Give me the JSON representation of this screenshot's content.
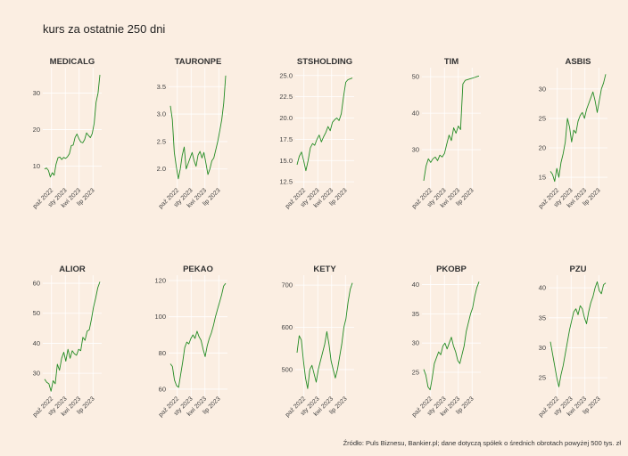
{
  "title": "kurs za ostatnie 250 dni",
  "caption": "Źródło: Puls Biznesu, Bankier.pl; dane dotyczą spółek o średnich obrotach powyżej 500 tys. zł",
  "colors": {
    "background": "#fbeee2",
    "line": "#238b23",
    "grid": "#ffffff"
  },
  "chart_data": [
    {
      "type": "line",
      "title": "MEDICALG",
      "x_ticks": [
        "paź 2022",
        "sty 2023",
        "kwi 2023",
        "lip 2023"
      ],
      "y_ticks": [
        10,
        20,
        30
      ],
      "ylim": [
        5,
        36
      ],
      "series": [
        {
          "values": [
            9.2,
            9.5,
            8.8,
            7.0,
            8.2,
            7.5,
            10.5,
            12.3,
            12.5,
            11.8,
            12.4,
            12.1,
            12.6,
            13.4,
            15.6,
            15.8,
            17.9,
            18.8,
            17.5,
            16.6,
            16.4,
            17.3,
            19.1,
            18.4,
            17.8,
            18.9,
            21.8,
            27.5,
            30.0,
            35.0
          ]
        }
      ]
    },
    {
      "type": "line",
      "title": "TAURONPE",
      "x_ticks": [
        "paź 2022",
        "sty 2023",
        "kwi 2023",
        "lip 2023"
      ],
      "y_ticks": [
        2.0,
        2.5,
        3.0,
        3.5
      ],
      "ylim": [
        1.72,
        3.78
      ],
      "series": [
        {
          "values": [
            3.15,
            2.9,
            2.3,
            2.05,
            1.82,
            2.0,
            2.25,
            2.4,
            2.0,
            2.1,
            2.2,
            2.3,
            2.15,
            2.05,
            2.25,
            2.32,
            2.2,
            2.3,
            2.1,
            1.9,
            2.0,
            2.15,
            2.2,
            2.35,
            2.5,
            2.7,
            2.9,
            3.2,
            3.7
          ]
        }
      ]
    },
    {
      "type": "line",
      "title": "STSHOLDING",
      "x_ticks": [
        "paź 2022",
        "sty 2023",
        "kwi 2023",
        "lip 2023"
      ],
      "y_ticks": [
        12.5,
        15.0,
        17.5,
        20.0,
        22.5,
        25.0
      ],
      "ylim": [
        12.2,
        25.5
      ],
      "series": [
        {
          "values": [
            14.5,
            15.5,
            16.0,
            15.0,
            13.8,
            15.0,
            16.5,
            17.0,
            16.8,
            17.5,
            18.0,
            17.2,
            17.8,
            18.3,
            19.0,
            18.5,
            19.5,
            19.8,
            20.0,
            19.7,
            20.5,
            22.5,
            24.2,
            24.5,
            24.6,
            24.7
          ]
        }
      ]
    },
    {
      "type": "line",
      "title": "TIM",
      "x_ticks": [
        "paź 2022",
        "sty 2023",
        "kwi 2023",
        "lip 2023"
      ],
      "y_ticks": [
        30,
        40,
        50
      ],
      "ylim": [
        20.5,
        51.5
      ],
      "series": [
        {
          "values": [
            21.5,
            25.5,
            27.5,
            26.5,
            27.5,
            28.0,
            27.0,
            28.5,
            28.0,
            29.0,
            31.5,
            34.0,
            32.5,
            36.0,
            34.5,
            36.5,
            35.5,
            48.0,
            49.0,
            49.2,
            49.4,
            49.6,
            49.8,
            50.0,
            50.2
          ]
        }
      ]
    },
    {
      "type": "line",
      "title": "ASBIS",
      "x_ticks": [
        "paź 2022",
        "sty 2023",
        "kwi 2023",
        "lip 2023"
      ],
      "y_ticks": [
        15,
        20,
        25,
        30
      ],
      "ylim": [
        13.8,
        33.0
      ],
      "series": [
        {
          "values": [
            16.0,
            15.5,
            14.3,
            16.5,
            15.0,
            17.5,
            19.0,
            21.0,
            25.0,
            23.5,
            21.0,
            23.0,
            22.5,
            24.5,
            25.5,
            26.0,
            25.0,
            26.5,
            27.5,
            28.5,
            29.5,
            28.0,
            26.0,
            28.0,
            30.0,
            31.0,
            32.5
          ]
        }
      ]
    },
    {
      "type": "line",
      "title": "ALIOR",
      "x_ticks": [
        "paź 2022",
        "sty 2023",
        "kwi 2023",
        "lip 2023"
      ],
      "y_ticks": [
        30,
        40,
        50,
        60
      ],
      "ylim": [
        23.5,
        61.5
      ],
      "series": [
        {
          "values": [
            28.0,
            27.0,
            26.5,
            24.0,
            27.5,
            26.5,
            33.0,
            31.0,
            35.0,
            37.0,
            34.0,
            38.0,
            35.0,
            37.5,
            36.5,
            36.0,
            38.0,
            37.5,
            42.0,
            41.0,
            44.0,
            44.5,
            48.0,
            52.0,
            55.0,
            58.5,
            60.5
          ]
        }
      ]
    },
    {
      "type": "line",
      "title": "PEKAO",
      "x_ticks": [
        "paź 2022",
        "sty 2023",
        "kwi 2023",
        "lip 2023"
      ],
      "y_ticks": [
        60,
        80,
        100,
        120
      ],
      "ylim": [
        58.0,
        121.0
      ],
      "series": [
        {
          "values": [
            74.0,
            72.5,
            65.0,
            62.0,
            61.0,
            68.0,
            75.0,
            83.0,
            86.0,
            85.0,
            88.0,
            90.0,
            88.0,
            92.0,
            89.0,
            87.0,
            82.0,
            78.0,
            84.0,
            88.0,
            91.0,
            95.0,
            100.0,
            104.0,
            108.0,
            112.0,
            117.0,
            118.5
          ]
        }
      ]
    },
    {
      "type": "line",
      "title": "KETY",
      "x_ticks": [
        "paź 2022",
        "sty 2023",
        "kwi 2023",
        "lip 2023"
      ],
      "y_ticks": [
        500,
        600,
        700
      ],
      "ylim": [
        445,
        715
      ],
      "series": [
        {
          "values": [
            540,
            580,
            570,
            520,
            480,
            455,
            500,
            510,
            490,
            470,
            500,
            520,
            540,
            560,
            590,
            560,
            520,
            500,
            480,
            500,
            530,
            560,
            600,
            620,
            660,
            690,
            705
          ]
        }
      ]
    },
    {
      "type": "line",
      "title": "PKOBP",
      "x_ticks": [
        "paź 2022",
        "sty 2023",
        "kwi 2023",
        "lip 2023"
      ],
      "y_ticks": [
        25,
        30,
        35,
        40
      ],
      "ylim": [
        21.5,
        41.0
      ],
      "series": [
        {
          "values": [
            25.5,
            24.5,
            22.5,
            22.0,
            24.0,
            26.5,
            27.5,
            28.5,
            28.0,
            29.5,
            30.0,
            29.0,
            30.0,
            31.0,
            29.5,
            28.5,
            27.0,
            26.5,
            28.0,
            29.5,
            32.0,
            33.5,
            35.0,
            36.0,
            38.0,
            39.5,
            40.5
          ]
        }
      ]
    },
    {
      "type": "line",
      "title": "PZU",
      "x_ticks": [
        "paź 2022",
        "sty 2023",
        "kwi 2023",
        "lip 2023"
      ],
      "y_ticks": [
        25,
        30,
        35,
        40
      ],
      "ylim": [
        22.5,
        41.5
      ],
      "series": [
        {
          "values": [
            31.0,
            29.0,
            27.0,
            25.0,
            23.5,
            25.5,
            27.0,
            29.0,
            31.0,
            33.0,
            34.5,
            36.0,
            36.5,
            35.5,
            37.0,
            36.5,
            35.0,
            34.0,
            36.0,
            37.5,
            38.5,
            40.0,
            41.0,
            39.5,
            39.0,
            40.5,
            40.8
          ]
        }
      ]
    }
  ]
}
